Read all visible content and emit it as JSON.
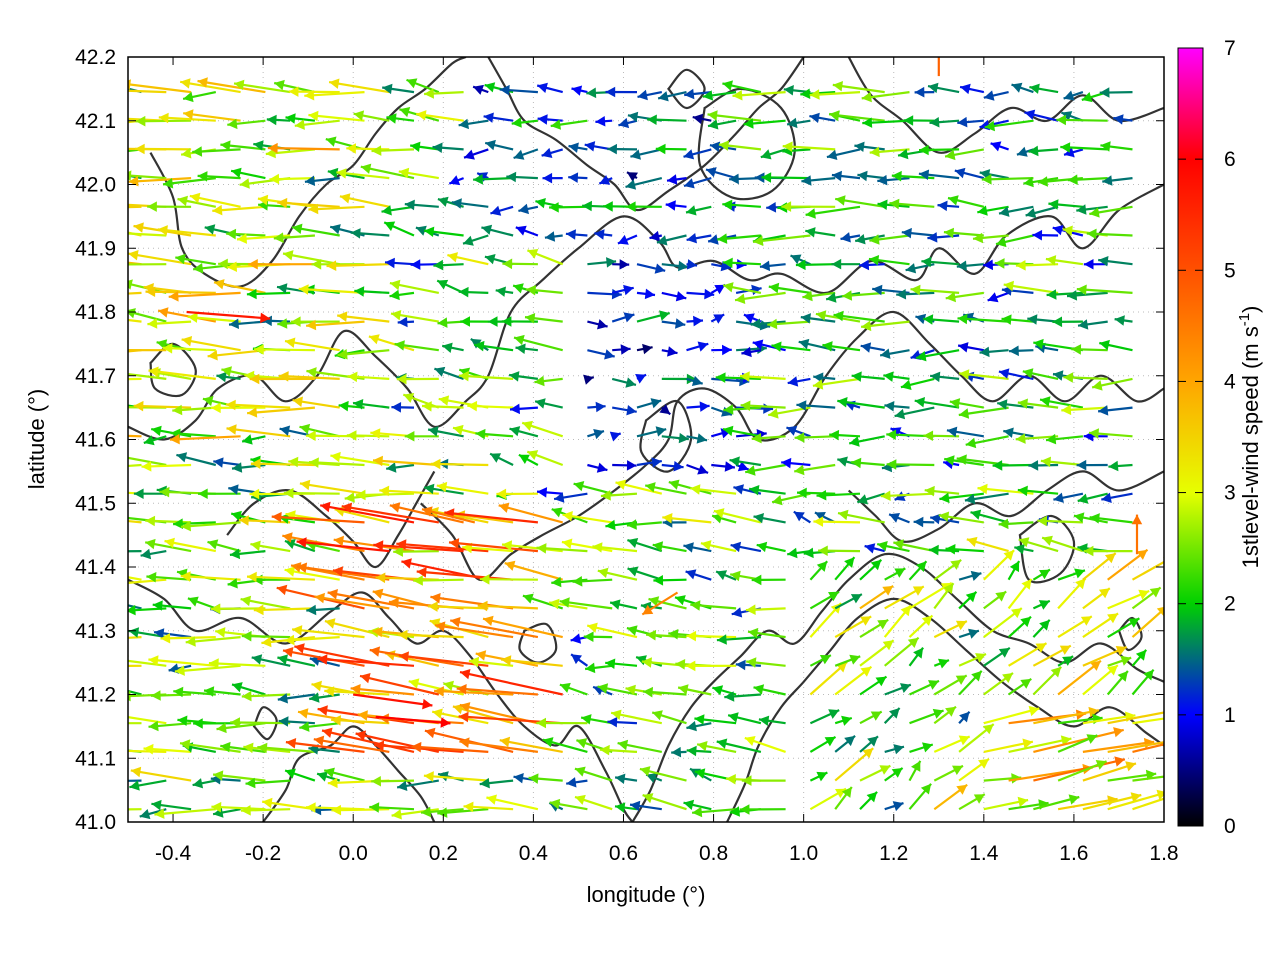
{
  "chart_data": {
    "type": "vector-field",
    "title": "",
    "xlabel": "longitude (°)",
    "ylabel": "latitude (°)",
    "xlim": [
      -0.5,
      1.8
    ],
    "ylim": [
      41.0,
      42.2
    ],
    "xticks": [
      -0.4,
      -0.2,
      0.0,
      0.2,
      0.4,
      0.6,
      0.8,
      1.0,
      1.2,
      1.4,
      1.6,
      1.8
    ],
    "xtick_labels": [
      "-0.4",
      "-0.2",
      "0.0",
      "0.2",
      "0.4",
      "0.6",
      "0.8",
      "1.0",
      "1.2",
      "1.4",
      "1.6",
      "1.8"
    ],
    "yticks": [
      41.0,
      41.1,
      41.2,
      41.3,
      41.4,
      41.5,
      41.6,
      41.7,
      41.8,
      41.9,
      42.0,
      42.1,
      42.2
    ],
    "ytick_labels": [
      "41.0",
      "41.1",
      "41.2",
      "41.3",
      "41.4",
      "41.5",
      "41.6",
      "41.7",
      "41.8",
      "41.9",
      "42.0",
      "42.1",
      "42.2"
    ],
    "grid": "dotted",
    "colorbar": {
      "label_prefix": "1stlevel-wind speed (m s",
      "label_sup": "-1",
      "label_suffix": ")",
      "range": [
        0,
        7
      ],
      "ticks": [
        0,
        1,
        2,
        3,
        4,
        5,
        6,
        7
      ],
      "tick_labels": [
        "0",
        "1",
        "2",
        "3",
        "4",
        "5",
        "6",
        "7"
      ],
      "stops": [
        {
          "value": 0,
          "color": "#000000"
        },
        {
          "value": 1,
          "color": "#0000ff"
        },
        {
          "value": 2,
          "color": "#00d000"
        },
        {
          "value": 3,
          "color": "#e6ff00"
        },
        {
          "value": 4,
          "color": "#ffa500"
        },
        {
          "value": 5,
          "color": "#ff5000"
        },
        {
          "value": 6,
          "color": "#ff0000"
        },
        {
          "value": 7,
          "color": "#ff00ff"
        }
      ]
    },
    "contour_color": "#333333",
    "wind_regions": [
      {
        "lon": [
          -0.5,
          0.1
        ],
        "lat": [
          41.6,
          42.2
        ],
        "u": -2.2,
        "v": 0.1,
        "speed": 2.8
      },
      {
        "lon": [
          -0.5,
          0.3
        ],
        "lat": [
          41.0,
          41.6
        ],
        "u": -2.0,
        "v": 0.1,
        "speed": 2.4
      },
      {
        "lon": [
          0.0,
          0.6
        ],
        "lat": [
          41.1,
          41.5
        ],
        "u": -3.2,
        "v": 0.5,
        "speed": 4.0
      },
      {
        "lon": [
          0.3,
          0.9
        ],
        "lat": [
          41.9,
          42.2
        ],
        "u": -1.2,
        "v": 0.0,
        "speed": 1.4
      },
      {
        "lon": [
          0.5,
          1.0
        ],
        "lat": [
          41.55,
          41.9
        ],
        "u": 1.0,
        "v": 0.0,
        "speed": 1.2
      },
      {
        "lon": [
          0.9,
          1.8
        ],
        "lat": [
          41.5,
          42.2
        ],
        "u": -1.6,
        "v": 0.0,
        "speed": 1.9
      },
      {
        "lon": [
          1.0,
          1.8
        ],
        "lat": [
          41.0,
          41.4
        ],
        "u": 1.2,
        "v": 0.9,
        "speed": 2.6
      },
      {
        "lon": [
          1.4,
          1.8
        ],
        "lat": [
          41.0,
          41.2
        ],
        "u": 2.8,
        "v": 0.6,
        "speed": 3.3
      },
      {
        "lon": [
          0.5,
          1.0
        ],
        "lat": [
          41.0,
          41.4
        ],
        "u": -1.5,
        "v": 0.2,
        "speed": 2.0
      }
    ],
    "highlighted_vectors": [
      {
        "lon": -0.37,
        "lat": 41.8,
        "u": 3.8,
        "v": -0.3,
        "speed": 5.7
      },
      {
        "lon": 0.0,
        "lat": 41.2,
        "u": 3.6,
        "v": -0.5,
        "speed": 5.8
      },
      {
        "lon": 0.05,
        "lat": 41.165,
        "u": 3.4,
        "v": -0.3,
        "speed": 6.0
      },
      {
        "lon": 1.3,
        "lat": 42.17,
        "u": 0.0,
        "v": 2.0,
        "speed": 4.8
      },
      {
        "lon": 1.74,
        "lat": 41.42,
        "u": 0.0,
        "v": 1.8,
        "speed": 4.6
      },
      {
        "lon": 0.72,
        "lat": 41.36,
        "u": -1.6,
        "v": -1.0,
        "speed": 4.4
      },
      {
        "lon": 0.27,
        "lat": 41.47,
        "u": -2.4,
        "v": 0.6,
        "speed": 4.5
      }
    ],
    "contours": [
      [
        [
          -0.5,
          41.62
        ],
        [
          -0.42,
          41.6
        ],
        [
          -0.35,
          41.63
        ],
        [
          -0.3,
          41.68
        ],
        [
          -0.22,
          41.7
        ],
        [
          -0.15,
          41.66
        ],
        [
          -0.08,
          41.7
        ],
        [
          -0.02,
          41.77
        ],
        [
          0.05,
          41.73
        ],
        [
          0.12,
          41.68
        ],
        [
          0.18,
          41.62
        ],
        [
          0.25,
          41.66
        ],
        [
          0.3,
          41.7
        ],
        [
          0.35,
          41.8
        ],
        [
          0.42,
          41.85
        ],
        [
          0.5,
          41.9
        ],
        [
          0.6,
          41.95
        ],
        [
          0.68,
          41.91
        ],
        [
          0.72,
          41.87
        ],
        [
          0.8,
          41.88
        ],
        [
          0.88,
          41.85
        ],
        [
          0.95,
          41.86
        ],
        [
          1.05,
          41.83
        ],
        [
          1.15,
          41.88
        ],
        [
          1.25,
          41.85
        ],
        [
          1.3,
          41.9
        ],
        [
          1.38,
          41.86
        ],
        [
          1.45,
          41.92
        ],
        [
          1.55,
          41.95
        ],
        [
          1.62,
          41.9
        ],
        [
          1.7,
          41.96
        ],
        [
          1.8,
          42.0
        ]
      ],
      [
        [
          -0.5,
          41.38
        ],
        [
          -0.42,
          41.35
        ],
        [
          -0.35,
          41.3
        ],
        [
          -0.25,
          41.32
        ],
        [
          -0.15,
          41.28
        ],
        [
          -0.05,
          41.33
        ],
        [
          0.02,
          41.36
        ],
        [
          0.08,
          41.32
        ],
        [
          0.14,
          41.28
        ],
        [
          0.2,
          41.3
        ],
        [
          0.26,
          41.26
        ],
        [
          0.32,
          41.2
        ],
        [
          0.38,
          41.15
        ],
        [
          0.45,
          41.12
        ],
        [
          0.5,
          41.15
        ],
        [
          0.56,
          41.08
        ],
        [
          0.6,
          41.02
        ],
        [
          0.62,
          41.0
        ]
      ],
      [
        [
          0.15,
          41.5
        ],
        [
          0.22,
          41.45
        ],
        [
          0.28,
          41.38
        ],
        [
          0.35,
          41.42
        ],
        [
          0.42,
          41.45
        ],
        [
          0.5,
          41.48
        ],
        [
          0.58,
          41.52
        ],
        [
          0.65,
          41.56
        ],
        [
          0.7,
          41.6
        ],
        [
          0.72,
          41.66
        ],
        [
          0.78,
          41.68
        ],
        [
          0.85,
          41.65
        ],
        [
          0.9,
          41.6
        ],
        [
          0.98,
          41.62
        ],
        [
          1.05,
          41.7
        ],
        [
          1.12,
          41.76
        ],
        [
          1.2,
          41.8
        ],
        [
          1.28,
          41.75
        ],
        [
          1.35,
          41.7
        ],
        [
          1.42,
          41.66
        ],
        [
          1.5,
          41.7
        ],
        [
          1.58,
          41.66
        ],
        [
          1.66,
          41.7
        ],
        [
          1.74,
          41.66
        ],
        [
          1.8,
          41.68
        ]
      ],
      [
        [
          0.62,
          41.0
        ],
        [
          0.66,
          41.05
        ],
        [
          0.7,
          41.12
        ],
        [
          0.75,
          41.18
        ],
        [
          0.8,
          41.22
        ],
        [
          0.86,
          41.26
        ],
        [
          0.92,
          41.3
        ],
        [
          0.98,
          41.28
        ],
        [
          1.04,
          41.33
        ],
        [
          1.1,
          41.38
        ],
        [
          1.18,
          41.42
        ],
        [
          1.26,
          41.4
        ],
        [
          1.34,
          41.35
        ],
        [
          1.42,
          41.3
        ],
        [
          1.5,
          41.28
        ],
        [
          1.58,
          41.25
        ],
        [
          1.66,
          41.28
        ],
        [
          1.74,
          41.24
        ],
        [
          1.8,
          41.22
        ]
      ],
      [
        [
          0.83,
          41.0
        ],
        [
          0.87,
          41.06
        ],
        [
          0.9,
          41.12
        ],
        [
          0.95,
          41.18
        ],
        [
          1.0,
          41.22
        ],
        [
          1.06,
          41.27
        ],
        [
          1.12,
          41.32
        ],
        [
          1.2,
          41.35
        ],
        [
          1.28,
          41.32
        ],
        [
          1.36,
          41.27
        ],
        [
          1.44,
          41.22
        ],
        [
          1.52,
          41.18
        ],
        [
          1.6,
          41.15
        ],
        [
          1.68,
          41.18
        ],
        [
          1.76,
          41.14
        ],
        [
          1.8,
          41.12
        ]
      ],
      [
        [
          -0.45,
          42.05
        ],
        [
          -0.4,
          41.98
        ],
        [
          -0.38,
          41.9
        ],
        [
          -0.33,
          41.86
        ],
        [
          -0.25,
          41.84
        ],
        [
          -0.18,
          41.88
        ],
        [
          -0.12,
          41.95
        ],
        [
          -0.06,
          42.0
        ],
        [
          0.0,
          42.03
        ],
        [
          0.05,
          42.08
        ],
        [
          0.1,
          42.12
        ],
        [
          0.16,
          42.15
        ],
        [
          0.22,
          42.19
        ],
        [
          0.25,
          42.2
        ]
      ],
      [
        [
          0.3,
          42.2
        ],
        [
          0.34,
          42.15
        ],
        [
          0.38,
          42.1
        ],
        [
          0.45,
          42.07
        ],
        [
          0.52,
          42.03
        ],
        [
          0.58,
          42.0
        ],
        [
          0.63,
          41.96
        ],
        [
          0.7,
          41.99
        ],
        [
          0.78,
          42.03
        ],
        [
          0.85,
          42.08
        ],
        [
          0.9,
          42.12
        ],
        [
          0.95,
          42.15
        ],
        [
          1.0,
          42.2
        ]
      ],
      [
        [
          -0.2,
          41.0
        ],
        [
          -0.15,
          41.05
        ],
        [
          -0.12,
          41.1
        ],
        [
          -0.05,
          41.12
        ],
        [
          0.0,
          41.15
        ],
        [
          0.05,
          41.12
        ],
        [
          0.1,
          41.08
        ],
        [
          0.15,
          41.04
        ],
        [
          0.18,
          41.0
        ]
      ],
      [
        [
          -0.28,
          41.45
        ],
        [
          -0.22,
          41.5
        ],
        [
          -0.14,
          41.52
        ],
        [
          -0.06,
          41.48
        ],
        [
          0.0,
          41.44
        ],
        [
          0.05,
          41.4
        ],
        [
          0.1,
          41.45
        ],
        [
          0.14,
          41.5
        ],
        [
          0.18,
          41.55
        ]
      ],
      [
        [
          1.1,
          42.2
        ],
        [
          1.15,
          42.14
        ],
        [
          1.22,
          42.1
        ],
        [
          1.3,
          42.05
        ],
        [
          1.38,
          42.08
        ],
        [
          1.46,
          42.12
        ],
        [
          1.54,
          42.1
        ],
        [
          1.62,
          42.14
        ],
        [
          1.7,
          42.1
        ],
        [
          1.8,
          42.12
        ]
      ],
      [
        [
          1.1,
          41.52
        ],
        [
          1.16,
          41.48
        ],
        [
          1.22,
          41.44
        ],
        [
          1.3,
          41.46
        ],
        [
          1.38,
          41.5
        ],
        [
          1.46,
          41.48
        ],
        [
          1.54,
          41.52
        ],
        [
          1.62,
          41.55
        ],
        [
          1.7,
          41.52
        ],
        [
          1.8,
          41.55
        ]
      ]
    ],
    "closed_contours": [
      [
        [
          0.78,
          42.12
        ],
        [
          0.86,
          42.15
        ],
        [
          0.95,
          42.12
        ],
        [
          0.98,
          42.05
        ],
        [
          0.93,
          41.99
        ],
        [
          0.84,
          41.98
        ],
        [
          0.77,
          42.03
        ],
        [
          0.78,
          42.12
        ]
      ],
      [
        [
          0.7,
          42.15
        ],
        [
          0.74,
          42.12
        ],
        [
          0.78,
          42.15
        ],
        [
          0.74,
          42.18
        ],
        [
          0.7,
          42.15
        ]
      ],
      [
        [
          0.38,
          41.3
        ],
        [
          0.43,
          41.31
        ],
        [
          0.45,
          41.27
        ],
        [
          0.41,
          41.25
        ],
        [
          0.37,
          41.27
        ],
        [
          0.38,
          41.3
        ]
      ],
      [
        [
          0.65,
          41.63
        ],
        [
          0.72,
          41.66
        ],
        [
          0.75,
          41.6
        ],
        [
          0.7,
          41.55
        ],
        [
          0.64,
          41.58
        ],
        [
          0.65,
          41.63
        ]
      ],
      [
        [
          1.48,
          41.45
        ],
        [
          1.55,
          41.48
        ],
        [
          1.6,
          41.44
        ],
        [
          1.57,
          41.39
        ],
        [
          1.5,
          41.38
        ],
        [
          1.48,
          41.45
        ]
      ],
      [
        [
          -0.45,
          41.72
        ],
        [
          -0.4,
          41.75
        ],
        [
          -0.35,
          41.71
        ],
        [
          -0.38,
          41.67
        ],
        [
          -0.44,
          41.68
        ],
        [
          -0.45,
          41.72
        ]
      ],
      [
        [
          1.7,
          41.3
        ],
        [
          1.73,
          41.32
        ],
        [
          1.75,
          41.29
        ],
        [
          1.72,
          41.27
        ],
        [
          1.7,
          41.3
        ]
      ],
      [
        [
          -0.22,
          41.15
        ],
        [
          -0.2,
          41.18
        ],
        [
          -0.17,
          41.16
        ],
        [
          -0.19,
          41.13
        ],
        [
          -0.22,
          41.15
        ]
      ]
    ]
  }
}
